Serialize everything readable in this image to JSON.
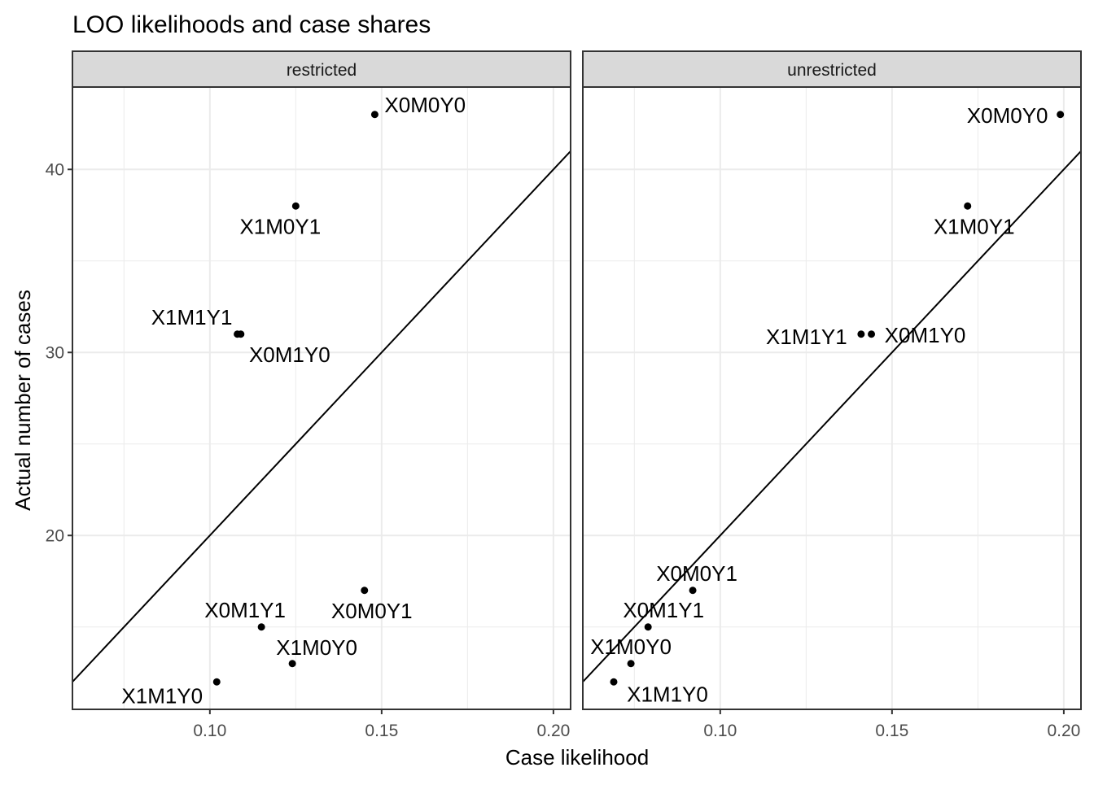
{
  "title": "LOO likelihoods and case shares",
  "xlabel": "Case likelihood",
  "ylabel": "Actual number of cases",
  "colors": {
    "point": "#000000",
    "line": "#000000",
    "grid": "#ebebeb",
    "strip": "#d9d9d9",
    "border": "#333333"
  },
  "chart_data": {
    "type": "scatter",
    "title": "LOO likelihoods and case shares",
    "xlabel": "Case likelihood",
    "ylabel": "Actual number of cases",
    "xlim": [
      0.06,
      0.205
    ],
    "ylim": [
      10.5,
      44.5
    ],
    "x_ticks": [
      0.1,
      0.15,
      0.2
    ],
    "x_tick_labels": [
      "0.10",
      "0.15",
      "0.20"
    ],
    "y_ticks": [
      20,
      30,
      40
    ],
    "y_tick_labels": [
      "20",
      "30",
      "40"
    ],
    "grid": true,
    "reference_line": {
      "slope": 200,
      "intercept": 0
    },
    "panels": [
      {
        "name": "restricted",
        "points": [
          {
            "label": "X0M0Y0",
            "x": 0.148,
            "y": 43
          },
          {
            "label": "X1M0Y1",
            "x": 0.125,
            "y": 38
          },
          {
            "label": "X1M1Y1",
            "x": 0.108,
            "y": 31
          },
          {
            "label": "X0M1Y0",
            "x": 0.109,
            "y": 31
          },
          {
            "label": "X0M0Y1",
            "x": 0.145,
            "y": 17
          },
          {
            "label": "X0M1Y1",
            "x": 0.115,
            "y": 15
          },
          {
            "label": "X1M0Y0",
            "x": 0.124,
            "y": 13
          },
          {
            "label": "X1M1Y0",
            "x": 0.102,
            "y": 12
          }
        ]
      },
      {
        "name": "unrestricted",
        "points": [
          {
            "label": "X0M0Y0",
            "x": 0.199,
            "y": 43
          },
          {
            "label": "X1M0Y1",
            "x": 0.172,
            "y": 38
          },
          {
            "label": "X1M1Y1",
            "x": 0.141,
            "y": 31
          },
          {
            "label": "X0M1Y0",
            "x": 0.144,
            "y": 31
          },
          {
            "label": "X0M0Y1",
            "x": 0.092,
            "y": 17
          },
          {
            "label": "X0M1Y1",
            "x": 0.079,
            "y": 15
          },
          {
            "label": "X1M0Y0",
            "x": 0.074,
            "y": 13
          },
          {
            "label": "X1M1Y0",
            "x": 0.069,
            "y": 12
          }
        ]
      }
    ]
  }
}
